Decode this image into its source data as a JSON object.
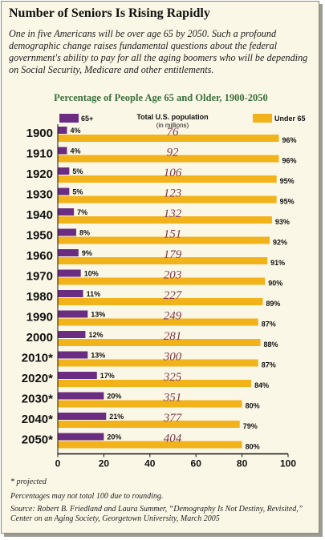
{
  "headline": "Number of Seniors Is Rising Rapidly",
  "intro": "One in five Americans will be over age 65 by 2050. Such a profound demographic change raises fundamental questions about the federal government's ability to pay for all the aging boomers who will be depending on Social Security, Medicare and other entitlements.",
  "chart_data": {
    "type": "bar",
    "orientation": "horizontal",
    "title": "Percentage of People Age 65 and Older, 1900-2050",
    "categories": [
      "1900",
      "1910",
      "1920",
      "1930",
      "1940",
      "1950",
      "1960",
      "1970",
      "1980",
      "1990",
      "2000",
      "2010*",
      "2020*",
      "2030*",
      "2040*",
      "2050*"
    ],
    "series": [
      {
        "name": "65+",
        "color": "#6b2d82",
        "values": [
          4,
          4,
          5,
          5,
          7,
          8,
          9,
          10,
          11,
          13,
          12,
          13,
          17,
          20,
          21,
          20
        ]
      },
      {
        "name": "Under 65",
        "color": "#f2b21a",
        "values": [
          96,
          96,
          95,
          95,
          93,
          92,
          91,
          90,
          89,
          87,
          88,
          87,
          84,
          80,
          79,
          80
        ]
      }
    ],
    "value_labels_65": [
      "4%",
      "4%",
      "5%",
      "5%",
      "7%",
      "8%",
      "9%",
      "10%",
      "11%",
      "13%",
      "12%",
      "13%",
      "17%",
      "20%",
      "21%",
      "20%"
    ],
    "value_labels_under65": [
      "96%",
      "96%",
      "95%",
      "95%",
      "93%",
      "92%",
      "91%",
      "90%",
      "89%",
      "87%",
      "88%",
      "87%",
      "84%",
      "80%",
      "79%",
      "80%"
    ],
    "population": {
      "label": "Total U.S. population",
      "unit": "(in millions)",
      "values": [
        76,
        92,
        106,
        123,
        132,
        151,
        179,
        203,
        227,
        249,
        281,
        300,
        325,
        351,
        377,
        404
      ]
    },
    "xlim": [
      0,
      100
    ],
    "xticks": [
      0,
      20,
      40,
      60,
      80,
      100
    ],
    "legend": [
      "65+",
      "Under 65"
    ],
    "grid": false,
    "legend_placement": "top"
  },
  "footnotes": {
    "projected": "* projected",
    "rounding": "Percentages may not total 100 due to rounding.",
    "source": "Source: Robert B. Friedland and Laura Summer, “Demography Is Not Destiny, Revisited,” Center on an Aging Society, Georgetown University, March 2005"
  }
}
